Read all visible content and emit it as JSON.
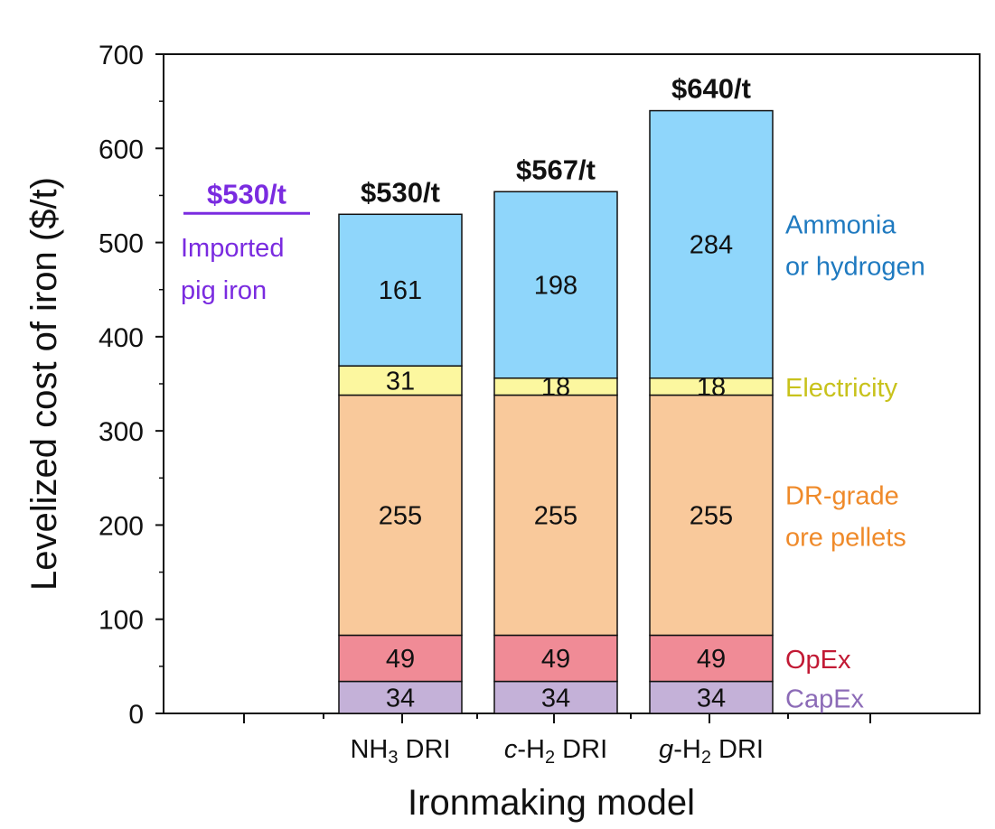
{
  "chart_data": {
    "type": "bar",
    "stacked": true,
    "categories": [
      "NH3 DRI",
      "c-H2 DRI",
      "g-H2 DRI"
    ],
    "series": [
      {
        "name": "CapEx",
        "values": [
          34,
          34,
          34
        ],
        "color": "#c4b1d8",
        "label_color": "#8c6bb7"
      },
      {
        "name": "OpEx",
        "values": [
          49,
          49,
          49
        ],
        "color": "#f08b96",
        "label_color": "#c21a35"
      },
      {
        "name": "DR-grade ore pellets",
        "values": [
          255,
          255,
          255
        ],
        "color": "#f9c99b",
        "label_color": "#ef8a2a"
      },
      {
        "name": "Electricity",
        "values": [
          31,
          18,
          18
        ],
        "color": "#fcf79f",
        "label_color": "#c8c21c"
      },
      {
        "name": "Ammonia or hydrogen",
        "values": [
          161,
          198,
          284
        ],
        "color": "#8fd6fb",
        "label_color": "#1f7ac0"
      }
    ],
    "totals": [
      "$530/t",
      "$567/t",
      "$640/t"
    ],
    "legend_lines": {
      "Ammonia or hydrogen": [
        "Ammonia",
        "or hydrogen"
      ],
      "Electricity": [
        "Electricity"
      ],
      "DR-grade ore pellets": [
        "DR-grade",
        "ore pellets"
      ],
      "OpEx": [
        "OpEx"
      ],
      "CapEx": [
        "CapEx"
      ]
    },
    "benchmark": {
      "value_label": "$530/t",
      "lines": [
        "Imported",
        "pig iron"
      ],
      "color": "#7a2be0"
    },
    "xlabel": "Ironmaking model",
    "ylabel": "Levelized cost of iron ($/t)",
    "ylim": [
      0,
      700
    ],
    "yticks": [
      0,
      100,
      200,
      300,
      400,
      500,
      600,
      700
    ]
  }
}
